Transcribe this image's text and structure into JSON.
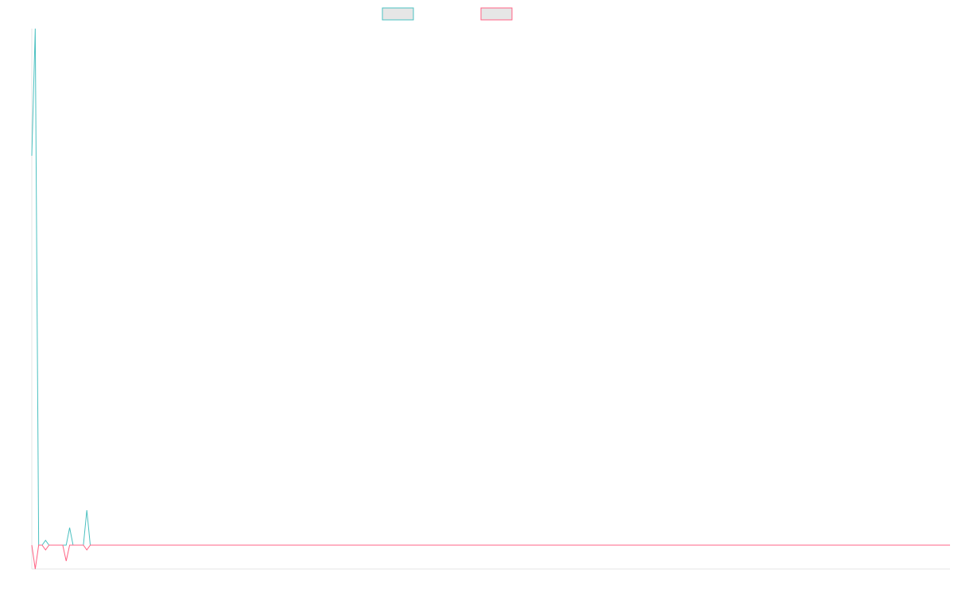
{
  "chart_data": {
    "type": "line",
    "x": [
      0,
      1,
      2,
      3,
      4,
      5,
      6,
      7,
      8,
      9,
      10,
      11,
      12,
      13,
      14,
      15,
      16,
      17,
      267
    ],
    "series": [
      {
        "color": "#4bc0c0",
        "values": [
          98,
          130,
          0,
          0,
          1.2,
          0,
          0,
          0,
          0,
          0,
          0,
          4.4,
          0,
          0,
          0,
          0,
          8.8,
          0,
          0
        ]
      },
      {
        "color": "#ff6384",
        "values": [
          0,
          -6,
          0,
          0,
          -1.2,
          0,
          0,
          0,
          0,
          0,
          -4,
          0,
          0,
          0,
          0,
          0,
          -1.2,
          0,
          0
        ]
      }
    ],
    "xlim": [
      0,
      267
    ],
    "ylim": [
      -6,
      130
    ],
    "legend": "top"
  }
}
